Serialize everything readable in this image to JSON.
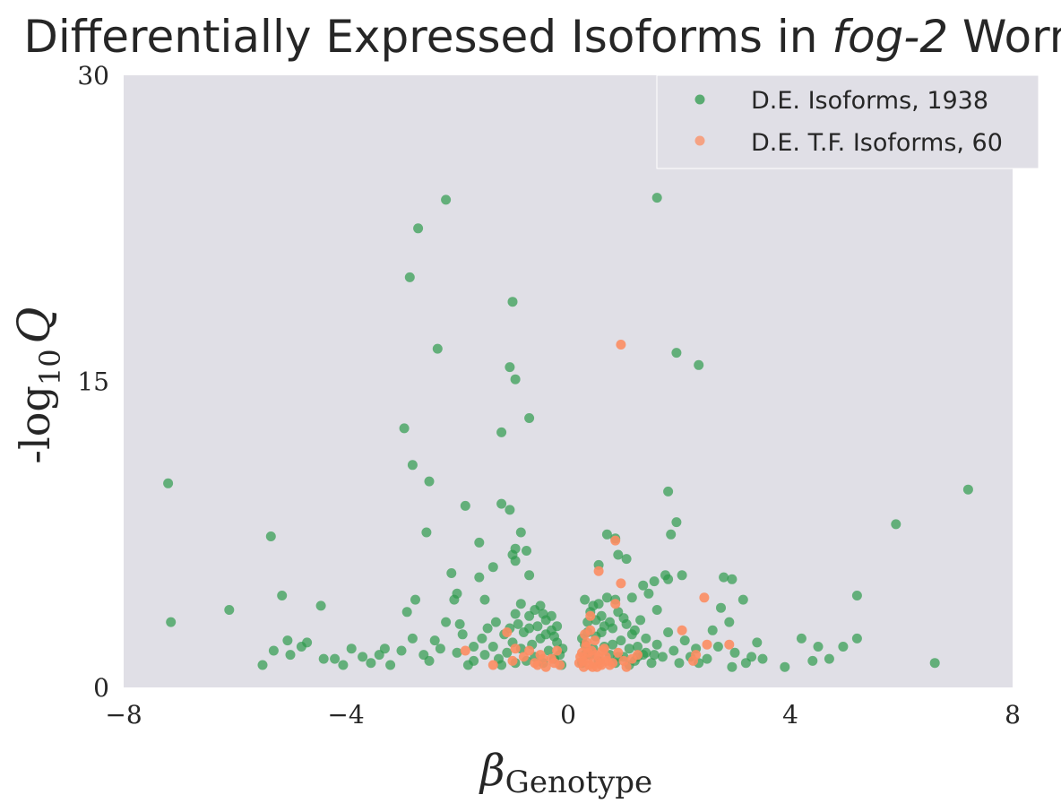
{
  "chart_data": {
    "type": "scatter",
    "title": {
      "before": "Differentially Expressed Isoforms in ",
      "italic": "fog-2",
      "after": " Worms"
    },
    "xlabel": {
      "symbol": "β",
      "subscript": "Genotype"
    },
    "ylabel": {
      "prefix": "-log",
      "subscript": "10",
      "symbol": "Q"
    },
    "xlim": [
      -8,
      8
    ],
    "ylim": [
      0,
      30
    ],
    "xticks": [
      {
        "value": -8,
        "label": "−8"
      },
      {
        "value": -4,
        "label": "−4"
      },
      {
        "value": 0,
        "label": "0"
      },
      {
        "value": 4,
        "label": "4"
      },
      {
        "value": 8,
        "label": "8"
      }
    ],
    "yticks": [
      {
        "value": 0,
        "label": "0"
      },
      {
        "value": 15,
        "label": "15"
      },
      {
        "value": 30,
        "label": "30"
      }
    ],
    "grid": false,
    "background": "#e0dfe6",
    "legend_position": "top-right",
    "series": [
      {
        "name": "D.E. Isoforms, 1938",
        "color": "#2e9a4b",
        "points": [
          [
            -7.2,
            10.0
          ],
          [
            -7.15,
            3.2
          ],
          [
            -6.1,
            3.8
          ],
          [
            -5.35,
            7.4
          ],
          [
            -5.15,
            4.5
          ],
          [
            -4.45,
            4.0
          ],
          [
            -2.2,
            23.9
          ],
          [
            -2.7,
            22.5
          ],
          [
            -2.85,
            20.1
          ],
          [
            -2.35,
            16.6
          ],
          [
            -1.0,
            18.9
          ],
          [
            -1.05,
            15.7
          ],
          [
            -0.95,
            15.1
          ],
          [
            -2.95,
            12.7
          ],
          [
            -1.2,
            12.5
          ],
          [
            -0.7,
            13.2
          ],
          [
            -2.8,
            10.9
          ],
          [
            -2.5,
            10.1
          ],
          [
            -1.85,
            8.9
          ],
          [
            -1.2,
            9.0
          ],
          [
            -1.05,
            8.7
          ],
          [
            -2.55,
            7.6
          ],
          [
            -0.85,
            7.6
          ],
          [
            -1.6,
            7.1
          ],
          [
            -0.95,
            6.8
          ],
          [
            -0.75,
            6.7
          ],
          [
            -1.0,
            6.5
          ],
          [
            -0.95,
            6.2
          ],
          [
            -1.35,
            5.9
          ],
          [
            -1.6,
            5.4
          ],
          [
            -2.1,
            5.6
          ],
          [
            -0.7,
            5.5
          ],
          [
            -2.05,
            4.3
          ],
          [
            -2.0,
            4.6
          ],
          [
            -1.5,
            4.3
          ],
          [
            -2.75,
            4.3
          ],
          [
            -2.9,
            3.7
          ],
          [
            -2.2,
            3.2
          ],
          [
            -2.8,
            2.4
          ],
          [
            -3.0,
            1.8
          ],
          [
            -3.9,
            1.9
          ],
          [
            -4.7,
            2.2
          ],
          [
            -4.8,
            2.0
          ],
          [
            -5.05,
            2.3
          ],
          [
            -5.3,
            1.8
          ],
          [
            -5.5,
            1.1
          ],
          [
            -5.0,
            1.6
          ],
          [
            -4.4,
            1.4
          ],
          [
            -3.7,
            1.5
          ],
          [
            -3.2,
            1.1
          ],
          [
            -2.5,
            1.3
          ],
          [
            -2.0,
            1.7
          ],
          [
            -1.7,
            1.3
          ],
          [
            1.6,
            24.0
          ],
          [
            1.95,
            16.4
          ],
          [
            2.35,
            15.8
          ],
          [
            1.8,
            9.6
          ],
          [
            1.35,
            5.0
          ],
          [
            0.9,
            6.5
          ],
          [
            1.95,
            8.1
          ],
          [
            1.85,
            7.5
          ],
          [
            0.7,
            7.5
          ],
          [
            0.85,
            7.3
          ],
          [
            1.05,
            6.3
          ],
          [
            0.55,
            6.0
          ],
          [
            1.75,
            5.5
          ],
          [
            1.8,
            5.3
          ],
          [
            2.05,
            5.5
          ],
          [
            1.55,
            5.2
          ],
          [
            1.15,
            4.4
          ],
          [
            1.45,
            4.6
          ],
          [
            2.8,
            5.4
          ],
          [
            2.95,
            5.3
          ],
          [
            3.15,
            4.3
          ],
          [
            2.75,
            3.9
          ],
          [
            2.9,
            3.2
          ],
          [
            2.6,
            2.8
          ],
          [
            7.2,
            9.7
          ],
          [
            5.9,
            8.0
          ],
          [
            5.2,
            4.5
          ],
          [
            6.6,
            1.2
          ],
          [
            5.2,
            2.4
          ],
          [
            4.95,
            2.0
          ],
          [
            4.7,
            1.4
          ],
          [
            4.5,
            2.0
          ],
          [
            4.2,
            2.4
          ],
          [
            3.9,
            1.0
          ],
          [
            4.4,
            1.3
          ],
          [
            3.5,
            1.4
          ],
          [
            2.95,
            1.0
          ],
          [
            2.35,
            1.2
          ],
          [
            -1.8,
            1.1
          ],
          [
            -1.5,
            1.6
          ],
          [
            -1.35,
            2.0
          ],
          [
            -1.25,
            1.4
          ],
          [
            -1.15,
            2.6
          ],
          [
            -1.1,
            1.7
          ],
          [
            -1.0,
            2.2
          ],
          [
            -0.95,
            1.2
          ],
          [
            -0.9,
            3.1
          ],
          [
            -0.85,
            1.9
          ],
          [
            -0.8,
            2.7
          ],
          [
            -0.75,
            1.3
          ],
          [
            -0.7,
            3.5
          ],
          [
            -0.65,
            2.1
          ],
          [
            -0.6,
            1.5
          ],
          [
            -0.55,
            3.0
          ],
          [
            -0.5,
            2.4
          ],
          [
            -0.45,
            1.2
          ],
          [
            -0.4,
            3.3
          ],
          [
            -0.35,
            1.8
          ],
          [
            -0.3,
            2.8
          ],
          [
            -0.25,
            1.4
          ],
          [
            -0.2,
            2.2
          ],
          [
            -0.15,
            1.6
          ],
          [
            -0.12,
            1.1
          ],
          [
            -0.1,
            1.9
          ],
          [
            -1.45,
            2.9
          ],
          [
            -1.3,
            3.2
          ],
          [
            -1.05,
            2.9
          ],
          [
            -0.95,
            3.6
          ],
          [
            -0.85,
            4.1
          ],
          [
            -0.6,
            3.8
          ],
          [
            -0.5,
            4.0
          ],
          [
            -0.45,
            3.6
          ],
          [
            -0.3,
            3.5
          ],
          [
            -0.2,
            3.0
          ],
          [
            -0.25,
            2.5
          ],
          [
            -0.4,
            2.6
          ],
          [
            -0.7,
            2.9
          ],
          [
            -1.2,
            1.1
          ],
          [
            -1.55,
            2.4
          ],
          [
            -1.7,
            2.0
          ],
          [
            -1.9,
            2.6
          ],
          [
            -1.95,
            3.1
          ],
          [
            -2.3,
            1.9
          ],
          [
            -2.6,
            1.6
          ],
          [
            -2.4,
            2.3
          ],
          [
            -3.4,
            1.6
          ],
          [
            -3.55,
            1.2
          ],
          [
            -3.3,
            1.9
          ],
          [
            -4.05,
            1.1
          ],
          [
            -4.2,
            1.4
          ],
          [
            0.25,
            1.2
          ],
          [
            0.3,
            2.1
          ],
          [
            0.35,
            3.2
          ],
          [
            0.4,
            1.6
          ],
          [
            0.45,
            4.0
          ],
          [
            0.5,
            2.5
          ],
          [
            0.55,
            1.3
          ],
          [
            0.6,
            3.5
          ],
          [
            0.65,
            2.0
          ],
          [
            0.7,
            4.4
          ],
          [
            0.75,
            1.6
          ],
          [
            0.8,
            2.9
          ],
          [
            0.85,
            1.2
          ],
          [
            0.9,
            3.7
          ],
          [
            0.95,
            2.3
          ],
          [
            1.0,
            1.5
          ],
          [
            1.05,
            3.1
          ],
          [
            1.1,
            1.9
          ],
          [
            1.15,
            2.6
          ],
          [
            1.2,
            1.3
          ],
          [
            1.25,
            2.0
          ],
          [
            1.3,
            3.3
          ],
          [
            1.35,
            1.6
          ],
          [
            1.4,
            2.4
          ],
          [
            1.5,
            1.2
          ],
          [
            1.6,
            2.1
          ],
          [
            1.7,
            1.5
          ],
          [
            1.8,
            2.7
          ],
          [
            1.9,
            1.8
          ],
          [
            2.0,
            1.2
          ],
          [
            2.1,
            2.3
          ],
          [
            2.2,
            1.5
          ],
          [
            2.3,
            1.9
          ],
          [
            2.5,
            1.4
          ],
          [
            2.7,
            2.0
          ],
          [
            3.0,
            1.7
          ],
          [
            3.2,
            1.2
          ],
          [
            3.3,
            1.5
          ],
          [
            3.4,
            2.2
          ],
          [
            0.3,
            4.3
          ],
          [
            0.4,
            3.7
          ],
          [
            0.55,
            4.1
          ],
          [
            0.65,
            3.0
          ],
          [
            0.85,
            4.3
          ],
          [
            1.0,
            3.4
          ],
          [
            1.2,
            2.8
          ],
          [
            1.4,
            1.7
          ],
          [
            1.6,
            3.8
          ],
          [
            0.35,
            2.7
          ],
          [
            0.45,
            1.9
          ],
          [
            0.6,
            2.7
          ],
          [
            0.75,
            3.2
          ],
          [
            0.9,
            1.5
          ],
          [
            1.1,
            1.1
          ],
          [
            0.25,
            2.4
          ],
          [
            0.3,
            1.6
          ],
          [
            0.5,
            3.3
          ],
          [
            0.8,
            2.1
          ],
          [
            1.25,
            1.5
          ],
          [
            1.55,
            1.6
          ]
        ]
      },
      {
        "name": "D.E. T.F. Isoforms, 60",
        "color": "#fc8d62",
        "points": [
          [
            0.95,
            16.8
          ],
          [
            0.85,
            7.2
          ],
          [
            0.55,
            5.7
          ],
          [
            0.95,
            5.1
          ],
          [
            0.85,
            4.1
          ],
          [
            0.4,
            3.5
          ],
          [
            2.45,
            4.4
          ],
          [
            2.05,
            2.8
          ],
          [
            2.5,
            2.1
          ],
          [
            2.9,
            2.1
          ],
          [
            2.3,
            1.6
          ],
          [
            2.25,
            1.3
          ],
          [
            -1.1,
            2.7
          ],
          [
            -0.95,
            1.9
          ],
          [
            -1.85,
            1.8
          ],
          [
            -1.35,
            1.1
          ],
          [
            -0.8,
            1.5
          ],
          [
            -0.6,
            1.2
          ],
          [
            -0.5,
            1.6
          ],
          [
            -0.4,
            1.0
          ],
          [
            -0.3,
            1.4
          ],
          [
            -0.15,
            1.1
          ],
          [
            -0.2,
            1.8
          ],
          [
            -0.7,
            1.8
          ],
          [
            -1.0,
            1.3
          ],
          [
            0.2,
            1.2
          ],
          [
            0.25,
            1.7
          ],
          [
            0.28,
            1.0
          ],
          [
            0.32,
            2.0
          ],
          [
            0.35,
            1.4
          ],
          [
            0.38,
            1.1
          ],
          [
            0.42,
            1.8
          ],
          [
            0.45,
            1.2
          ],
          [
            0.48,
            2.3
          ],
          [
            0.52,
            1.0
          ],
          [
            0.55,
            1.5
          ],
          [
            0.6,
            1.1
          ],
          [
            0.65,
            1.9
          ],
          [
            0.7,
            1.3
          ],
          [
            0.8,
            1.2
          ],
          [
            0.9,
            1.7
          ],
          [
            1.05,
            1.0
          ],
          [
            1.25,
            1.6
          ],
          [
            0.3,
            2.6
          ],
          [
            0.4,
            2.8
          ],
          [
            0.5,
            1.6
          ],
          [
            0.75,
            1.1
          ],
          [
            1.15,
            1.4
          ],
          [
            0.22,
            1.5
          ],
          [
            0.36,
            1.7
          ],
          [
            0.58,
            1.2
          ],
          [
            0.68,
            1.5
          ],
          [
            1.0,
            1.3
          ],
          [
            0.27,
            1.3
          ],
          [
            0.44,
            1.0
          ],
          [
            0.33,
            2.2
          ],
          [
            0.62,
            1.8
          ],
          [
            -0.25,
            1.2
          ],
          [
            -0.45,
            1.4
          ],
          [
            -0.55,
            1.1
          ]
        ]
      }
    ]
  }
}
